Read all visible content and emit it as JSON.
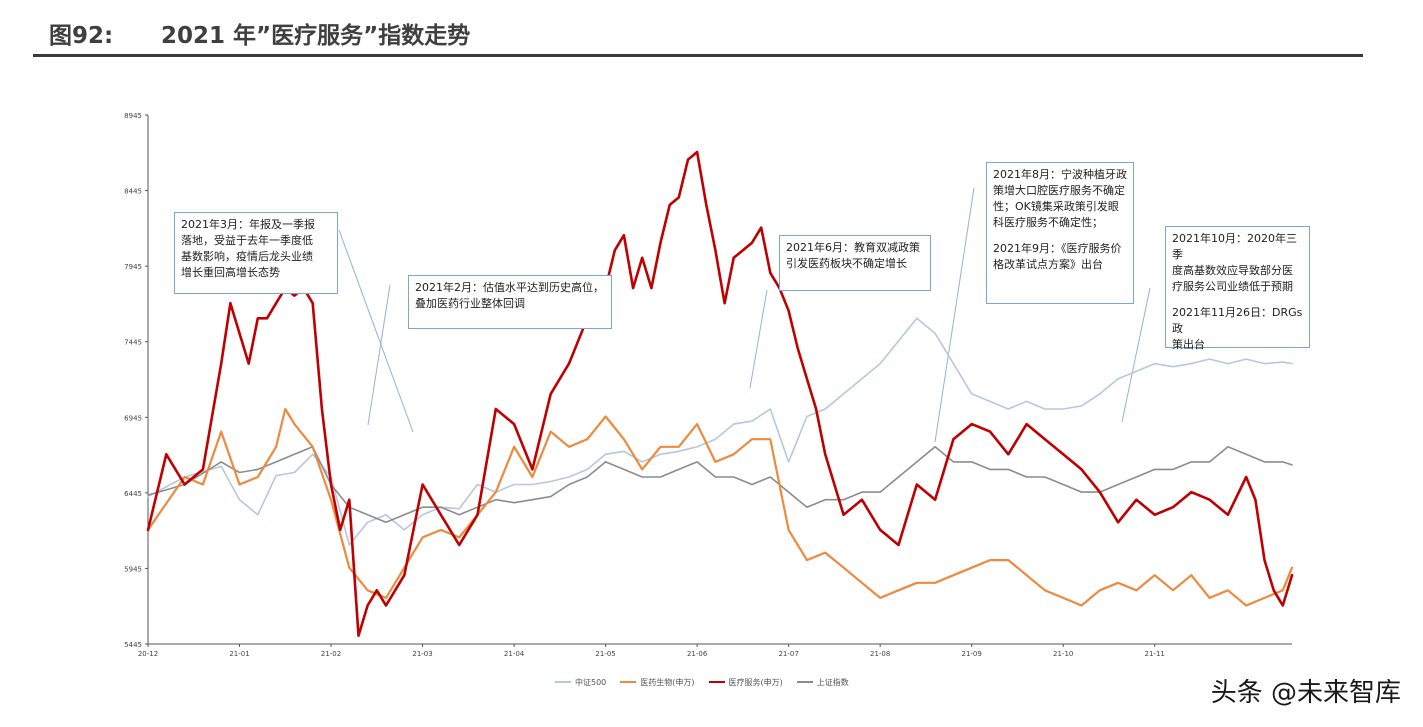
{
  "header": {
    "figure_number": "图92:",
    "title": "2021 年”医疗服务”指数走势"
  },
  "chart_data": {
    "type": "line",
    "title": "2021 年”医疗服务”指数走势",
    "ylim": [
      5445,
      8945
    ],
    "y_ticks": [
      "8945",
      "8445",
      "7945",
      "7445",
      "6945",
      "6445",
      "5945",
      "5445"
    ],
    "x_ticks": [
      "20-12",
      "21-01",
      "21-02",
      "21-03",
      "21-04",
      "21-05",
      "21-06",
      "21-07",
      "21-08",
      "21-09",
      "21-10",
      "21-11"
    ],
    "x_tick_index": [
      0,
      10,
      20,
      30,
      40,
      50,
      60,
      70,
      80,
      90,
      100,
      110
    ],
    "x_range": [
      0,
      125
    ],
    "series": [
      {
        "name": "中证500",
        "color": "#b8c6e0",
        "x": [
          0,
          4,
          8,
          10,
          12,
          14,
          16,
          18,
          20,
          22,
          24,
          26,
          28,
          30,
          32,
          34,
          36,
          38,
          40,
          42,
          44,
          46,
          48,
          50,
          52,
          54,
          56,
          58,
          60,
          62,
          64,
          66,
          68,
          70,
          72,
          74,
          76,
          78,
          80,
          82,
          84,
          86,
          88,
          90,
          92,
          94,
          96,
          98,
          100,
          102,
          104,
          106,
          108,
          110,
          112,
          114,
          116,
          118,
          120,
          122,
          124,
          125
        ],
        "values": [
          6420,
          6550,
          6620,
          6400,
          6300,
          6560,
          6580,
          6700,
          6550,
          6100,
          6250,
          6300,
          6200,
          6300,
          6350,
          6340,
          6500,
          6450,
          6500,
          6500,
          6520,
          6550,
          6600,
          6700,
          6720,
          6650,
          6700,
          6720,
          6750,
          6800,
          6900,
          6920,
          7000,
          6650,
          6950,
          7000,
          7100,
          7200,
          7300,
          7450,
          7600,
          7500,
          7300,
          7100,
          7050,
          7000,
          7050,
          7000,
          7000,
          7020,
          7100,
          7200,
          7250,
          7300,
          7280,
          7300,
          7330,
          7300,
          7330,
          7300,
          7310,
          7300
        ]
      },
      {
        "name": "医药生物(申万)",
        "color": "#ed8a3f",
        "x": [
          0,
          4,
          6,
          8,
          10,
          12,
          14,
          15,
          16,
          18,
          20,
          22,
          24,
          26,
          28,
          30,
          32,
          34,
          36,
          38,
          40,
          42,
          44,
          46,
          48,
          50,
          52,
          54,
          56,
          58,
          60,
          62,
          64,
          66,
          68,
          70,
          72,
          74,
          76,
          78,
          80,
          82,
          84,
          86,
          88,
          90,
          92,
          94,
          96,
          98,
          100,
          102,
          104,
          106,
          108,
          110,
          112,
          114,
          116,
          118,
          120,
          122,
          124,
          125
        ],
        "values": [
          6200,
          6550,
          6500,
          6850,
          6500,
          6550,
          6750,
          7000,
          6900,
          6750,
          6400,
          5950,
          5800,
          5750,
          5950,
          6150,
          6200,
          6150,
          6300,
          6450,
          6750,
          6550,
          6850,
          6750,
          6800,
          6950,
          6800,
          6600,
          6750,
          6750,
          6900,
          6650,
          6700,
          6800,
          6800,
          6200,
          6000,
          6050,
          5950,
          5850,
          5750,
          5800,
          5850,
          5850,
          5900,
          5950,
          6000,
          6000,
          5900,
          5800,
          5750,
          5700,
          5800,
          5850,
          5800,
          5900,
          5800,
          5900,
          5750,
          5800,
          5700,
          5750,
          5800,
          5950
        ]
      },
      {
        "name": "医疗服务(申万)",
        "color": "#c00000",
        "x": [
          0,
          2,
          4,
          6,
          8,
          9,
          10,
          11,
          12,
          13,
          14,
          15,
          16,
          17,
          18,
          19,
          20,
          21,
          22,
          23,
          24,
          25,
          26,
          28,
          30,
          32,
          34,
          36,
          38,
          40,
          42,
          44,
          46,
          48,
          50,
          51,
          52,
          53,
          54,
          55,
          56,
          57,
          58,
          59,
          60,
          61,
          62,
          63,
          64,
          65,
          66,
          67,
          68,
          69,
          70,
          71,
          72,
          73,
          74,
          76,
          78,
          80,
          82,
          84,
          86,
          88,
          90,
          92,
          94,
          96,
          98,
          100,
          102,
          104,
          106,
          108,
          110,
          112,
          114,
          116,
          118,
          120,
          121,
          122,
          123,
          124,
          125
        ],
        "values": [
          6200,
          6700,
          6500,
          6600,
          7300,
          7700,
          7500,
          7300,
          7600,
          7600,
          7700,
          7800,
          7750,
          7800,
          7700,
          7000,
          6500,
          6200,
          6400,
          5500,
          5700,
          5800,
          5700,
          5900,
          6500,
          6300,
          6100,
          6300,
          7000,
          6900,
          6600,
          7100,
          7300,
          7600,
          7800,
          8050,
          8150,
          7800,
          8000,
          7800,
          8100,
          8350,
          8400,
          8650,
          8700,
          8350,
          8050,
          7700,
          8000,
          8050,
          8100,
          8200,
          7900,
          7800,
          7650,
          7400,
          7200,
          7000,
          6700,
          6300,
          6400,
          6200,
          6100,
          6500,
          6400,
          6800,
          6900,
          6850,
          6700,
          6900,
          6800,
          6700,
          6600,
          6450,
          6250,
          6400,
          6300,
          6350,
          6450,
          6400,
          6300,
          6550,
          6400,
          6000,
          5800,
          5700,
          5900
        ]
      },
      {
        "name": "上证指数",
        "color": "#8c8c8c",
        "x": [
          0,
          4,
          8,
          10,
          12,
          14,
          16,
          18,
          20,
          22,
          24,
          26,
          28,
          30,
          32,
          34,
          36,
          38,
          40,
          42,
          44,
          46,
          48,
          50,
          52,
          54,
          56,
          58,
          60,
          62,
          64,
          66,
          68,
          70,
          72,
          74,
          76,
          78,
          80,
          82,
          84,
          86,
          88,
          90,
          92,
          94,
          96,
          98,
          100,
          102,
          104,
          106,
          108,
          110,
          112,
          114,
          116,
          118,
          120,
          122,
          124,
          125
        ],
        "values": [
          6430,
          6500,
          6650,
          6580,
          6600,
          6650,
          6700,
          6750,
          6500,
          6350,
          6300,
          6250,
          6300,
          6350,
          6350,
          6300,
          6350,
          6400,
          6380,
          6400,
          6420,
          6500,
          6550,
          6650,
          6600,
          6550,
          6550,
          6600,
          6650,
          6550,
          6550,
          6500,
          6550,
          6450,
          6350,
          6400,
          6400,
          6450,
          6450,
          6550,
          6650,
          6750,
          6650,
          6650,
          6600,
          6600,
          6550,
          6550,
          6500,
          6450,
          6450,
          6500,
          6550,
          6600,
          6600,
          6650,
          6650,
          6750,
          6700,
          6650,
          6650,
          6630
        ]
      }
    ],
    "annotations": [
      {
        "lines": [
          "2021年3月：年报及一季报",
          "落地，受益于去年一季度低",
          "基数影响，疫情后龙头业绩",
          "增长重回高增长态势"
        ]
      },
      {
        "lines": [
          "2021年2月：估值水平达到历史高位，",
          "叠加医药行业整体回调"
        ]
      },
      {
        "lines": [
          "2021年6月：教育双减政策",
          "引发医药板块不确定增长"
        ]
      },
      {
        "lines": [
          "2021年8月：宁波种植牙政",
          "策增大口腔医疗服务不确定",
          "性；OK镜集采政策引发眼",
          "科医疗服务不确定性；"
        ],
        "lines2": [
          "2021年9月：《医疗服务价",
          "格改革试点方案》出台"
        ]
      },
      {
        "lines": [
          "2021年10月：2020年三季",
          "度高基数效应导致部分医",
          "疗服务公司业绩低于预期"
        ],
        "lines2": [
          "2021年11月26日：DRGs政",
          "策出台"
        ]
      }
    ]
  },
  "watermark": "头条 @未来智库"
}
